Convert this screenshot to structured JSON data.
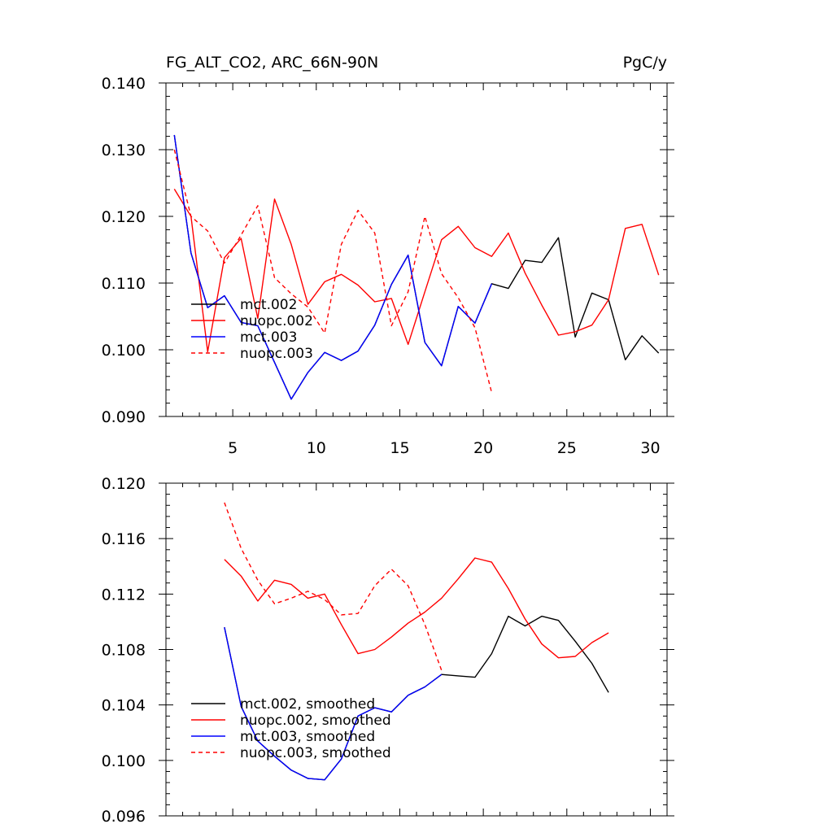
{
  "header": {
    "title_left": "FG_ALT_CO2, ARC_66N-90N",
    "title_right": "PgC/y"
  },
  "chart_data": [
    {
      "type": "line",
      "title": "FG_ALT_CO2, ARC_66N-90N",
      "units": "PgC/y",
      "xlim": [
        1,
        31
      ],
      "ylim": [
        0.09,
        0.14
      ],
      "x_ticks": [
        5,
        10,
        15,
        20,
        25,
        30
      ],
      "y_ticks": [
        0.09,
        0.1,
        0.11,
        0.12,
        0.13,
        0.14
      ],
      "y_tick_labels": [
        "0.090",
        "0.100",
        "0.110",
        "0.120",
        "0.130",
        "0.140"
      ],
      "legend_position": "bottom-left",
      "series": [
        {
          "name": "mct.002",
          "color": "#000000",
          "dash": "solid",
          "x": [
            1.5,
            2.5,
            3.5,
            4.5,
            5.5,
            6.5,
            7.5,
            8.5,
            9.5,
            10.5,
            11.5,
            12.5,
            13.5,
            14.5,
            15.5,
            16.5,
            17.5,
            18.5,
            19.5,
            20.5,
            21.5,
            22.5,
            23.5,
            24.5,
            25.5,
            26.5,
            27.5,
            28.5,
            29.5,
            30.5
          ],
          "values": [
            0.1322,
            0.1145,
            0.1063,
            0.1081,
            0.1041,
            0.1036,
            0.0981,
            0.0926,
            0.0966,
            0.0996,
            0.0984,
            0.0998,
            0.1037,
            0.1098,
            0.1142,
            0.1011,
            0.0976,
            0.1065,
            0.104,
            0.1099,
            0.1092,
            0.1134,
            0.1131,
            0.1168,
            0.1019,
            0.1085,
            0.1075,
            0.0985,
            0.1021,
            0.0995
          ]
        },
        {
          "name": "nuopc.002",
          "color": "#ff0000",
          "dash": "solid",
          "x": [
            1.5,
            2.5,
            3.5,
            4.5,
            5.5,
            6.5,
            7.5,
            8.5,
            9.5,
            10.5,
            11.5,
            12.5,
            13.5,
            14.5,
            15.5,
            16.5,
            17.5,
            18.5,
            19.5,
            20.5,
            21.5,
            22.5,
            23.5,
            24.5,
            25.5,
            26.5,
            27.5,
            28.5,
            29.5,
            30.5
          ],
          "values": [
            0.1241,
            0.12,
            0.0997,
            0.1138,
            0.1167,
            0.1047,
            0.1226,
            0.1158,
            0.1068,
            0.1102,
            0.1113,
            0.1097,
            0.1072,
            0.1077,
            0.1008,
            0.1087,
            0.1165,
            0.1185,
            0.1153,
            0.114,
            0.1175,
            0.1115,
            0.1067,
            0.1022,
            0.1027,
            0.1037,
            0.1075,
            0.1182,
            0.1188,
            0.1112
          ]
        },
        {
          "name": "mct.003",
          "color": "#0000ff",
          "dash": "solid",
          "x": [
            1.5,
            2.5,
            3.5,
            4.5,
            5.5,
            6.5,
            7.5,
            8.5,
            9.5,
            10.5,
            11.5,
            12.5,
            13.5,
            14.5,
            15.5,
            16.5,
            17.5,
            18.5,
            19.5,
            20.5
          ],
          "values": [
            0.1322,
            0.1145,
            0.1063,
            0.1081,
            0.1041,
            0.1036,
            0.0981,
            0.0926,
            0.0966,
            0.0996,
            0.0984,
            0.0998,
            0.1037,
            0.1098,
            0.1142,
            0.1011,
            0.0976,
            0.1065,
            0.104,
            0.1099
          ]
        },
        {
          "name": "nuopc.003",
          "color": "#ff0000",
          "dash": "dashed",
          "x": [
            1.5,
            2.5,
            3.5,
            4.5,
            5.5,
            6.5,
            7.5,
            8.5,
            9.5,
            10.5,
            11.5,
            12.5,
            13.5,
            14.5,
            15.5,
            16.5,
            17.5,
            18.5,
            19.5,
            20.5
          ],
          "values": [
            0.13,
            0.12,
            0.1178,
            0.113,
            0.1172,
            0.1216,
            0.1108,
            0.1084,
            0.1064,
            0.1025,
            0.1158,
            0.1209,
            0.1175,
            0.1036,
            0.1087,
            0.12,
            0.1114,
            0.1078,
            0.1033,
            0.0936
          ]
        }
      ]
    },
    {
      "type": "line",
      "xlim": [
        1,
        31
      ],
      "ylim": [
        0.096,
        0.12
      ],
      "x_ticks": [
        5,
        10,
        15,
        20,
        25,
        30
      ],
      "y_ticks": [
        0.096,
        0.1,
        0.104,
        0.108,
        0.112,
        0.116,
        0.12
      ],
      "y_tick_labels": [
        "0.096",
        "0.100",
        "0.104",
        "0.108",
        "0.112",
        "0.116",
        "0.120"
      ],
      "legend_position": "bottom-left",
      "series": [
        {
          "name": "mct.002, smoothed",
          "color": "#000000",
          "dash": "solid",
          "x": [
            4.5,
            5.5,
            6.5,
            7.5,
            8.5,
            9.5,
            10.5,
            11.5,
            12.5,
            13.5,
            14.5,
            15.5,
            16.5,
            17.5,
            18.5,
            19.5,
            20.5,
            21.5,
            22.5,
            23.5,
            24.5,
            25.5,
            26.5,
            27.5
          ],
          "values": [
            0.1096,
            0.1039,
            0.1014,
            0.1003,
            0.0993,
            0.0987,
            0.0986,
            0.1001,
            0.1032,
            0.1038,
            0.1035,
            0.1047,
            0.1053,
            0.1062,
            0.1061,
            0.106,
            0.1077,
            0.1104,
            0.1097,
            0.1104,
            0.1101,
            0.1086,
            0.107,
            0.1049
          ]
        },
        {
          "name": "nuopc.002, smoothed",
          "color": "#ff0000",
          "dash": "solid",
          "x": [
            4.5,
            5.5,
            6.5,
            7.5,
            8.5,
            9.5,
            10.5,
            11.5,
            12.5,
            13.5,
            14.5,
            15.5,
            16.5,
            17.5,
            18.5,
            19.5,
            20.5,
            21.5,
            22.5,
            23.5,
            24.5,
            25.5,
            26.5,
            27.5
          ],
          "values": [
            0.1145,
            0.1133,
            0.1115,
            0.113,
            0.1127,
            0.1117,
            0.112,
            0.1098,
            0.1077,
            0.108,
            0.1089,
            0.1099,
            0.1107,
            0.1117,
            0.1131,
            0.1146,
            0.1143,
            0.1124,
            0.1102,
            0.1084,
            0.1074,
            0.1075,
            0.1085,
            0.1092
          ]
        },
        {
          "name": "mct.003, smoothed",
          "color": "#0000ff",
          "dash": "solid",
          "x": [
            4.5,
            5.5,
            6.5,
            7.5,
            8.5,
            9.5,
            10.5,
            11.5,
            12.5,
            13.5,
            14.5,
            15.5,
            16.5,
            17.5
          ],
          "values": [
            0.1096,
            0.1039,
            0.1014,
            0.1003,
            0.0993,
            0.0987,
            0.0986,
            0.1001,
            0.1032,
            0.1038,
            0.1035,
            0.1047,
            0.1053,
            0.1062
          ]
        },
        {
          "name": "nuopc.003, smoothed",
          "color": "#ff0000",
          "dash": "dashed",
          "x": [
            4.5,
            5.5,
            6.5,
            7.5,
            8.5,
            9.5,
            10.5,
            11.5,
            12.5,
            13.5,
            14.5,
            15.5,
            16.5,
            17.5
          ],
          "values": [
            0.1186,
            0.1153,
            0.113,
            0.1113,
            0.1117,
            0.1122,
            0.1116,
            0.1105,
            0.1106,
            0.1126,
            0.1138,
            0.1126,
            0.1098,
            0.1065
          ]
        }
      ]
    }
  ]
}
